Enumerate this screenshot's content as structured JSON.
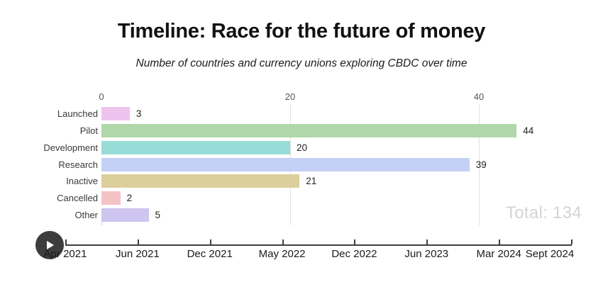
{
  "header": {
    "title": "Timeline: Race for the future of money",
    "subtitle": "Number of countries and currency unions exploring CBDC over time"
  },
  "chart_data": {
    "type": "bar",
    "orientation": "horizontal",
    "title": "Timeline: Race for the future of money",
    "subtitle": "Number of countries and currency unions exploring CBDC over time",
    "categories": [
      "Launched",
      "Pilot",
      "Development",
      "Research",
      "Inactive",
      "Cancelled",
      "Other"
    ],
    "values": [
      3,
      44,
      20,
      39,
      21,
      2,
      5
    ],
    "bar_colors": [
      "#eec3ee",
      "#b0d7a9",
      "#98dcd7",
      "#c4d0f5",
      "#dbcf9b",
      "#f3c3c6",
      "#cec5f0"
    ],
    "value_axis": {
      "ticks": [
        0,
        20,
        40
      ],
      "max": 50,
      "grid": true
    },
    "legend": "none",
    "total_label": "Total: 134",
    "total_value": 134
  },
  "timeline": {
    "labels": [
      "Apr 2021",
      "Jun 2021",
      "Dec 2021",
      "May 2022",
      "Dec 2022",
      "Jun 2023",
      "Mar 2024",
      "Sept 2024"
    ],
    "play_icon": "play-triangle"
  },
  "colors": {
    "play_button": "#3d3d3d",
    "play_glyph": "#ffffff",
    "gridline": "#e2e2e2",
    "axis_line": "#3f3f3f",
    "total_text": "#d4d4d4"
  }
}
